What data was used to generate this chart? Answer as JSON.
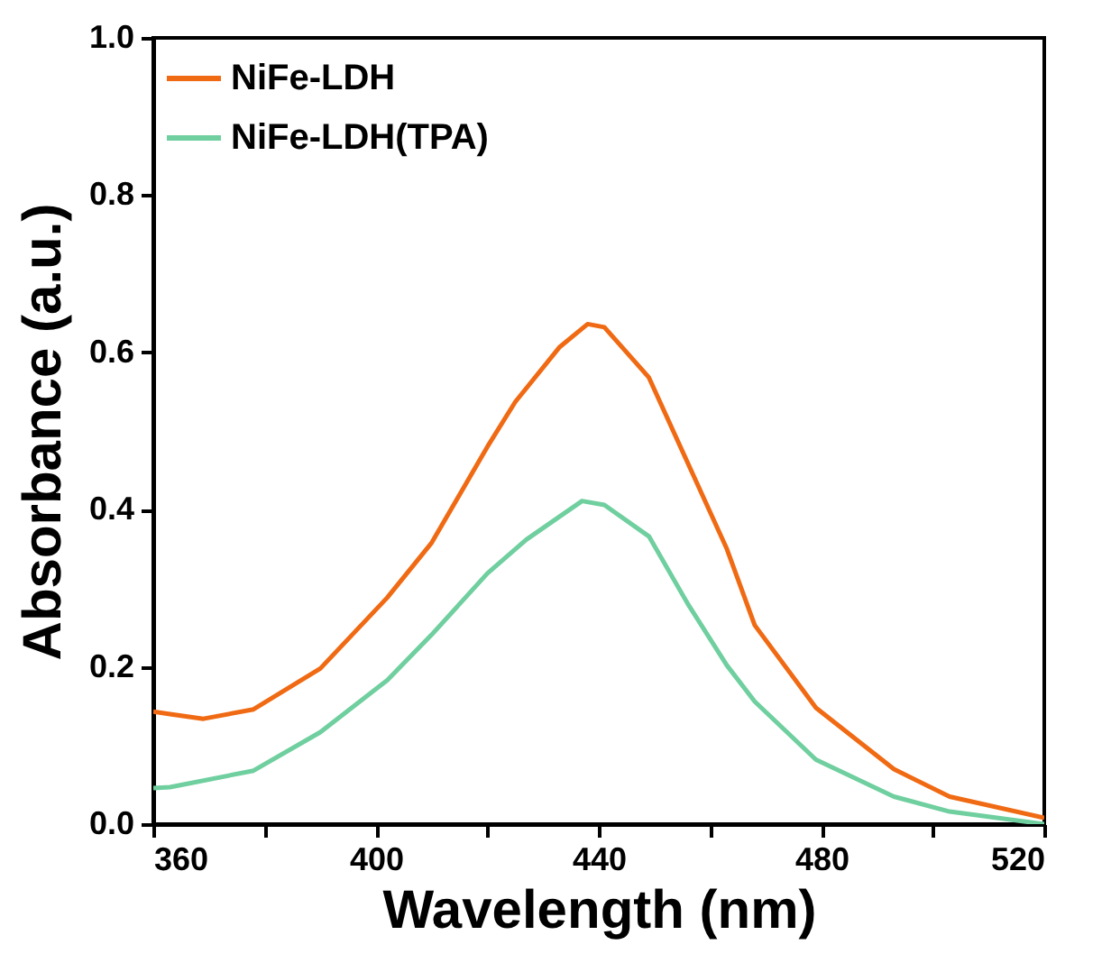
{
  "chart_data": {
    "type": "line",
    "xlabel": "Wavelength (nm)",
    "ylabel": "Absorbance (a.u.)",
    "xlim": [
      360,
      520
    ],
    "ylim": [
      0,
      1
    ],
    "xticks": [
      360,
      {
        "value": 380,
        "label": null
      },
      400,
      {
        "value": 420,
        "label": null
      },
      440,
      {
        "value": 460,
        "label": null
      },
      480,
      {
        "value": 500,
        "label": null
      },
      520
    ],
    "yticks": [
      {
        "value": 0,
        "label": "0.0"
      },
      {
        "value": 0.2,
        "label": "0.2"
      },
      {
        "value": 0.4,
        "label": "0.4"
      },
      {
        "value": 0.6,
        "label": "0.6"
      },
      {
        "value": 0.8,
        "label": "0.8"
      },
      {
        "value": 1,
        "label": "1.0"
      }
    ],
    "grid": false,
    "legend": "top left",
    "line_style": "solid",
    "marker": "none",
    "series": [
      {
        "name": "NiFe-LDH",
        "color": "#f06a14",
        "x": [
          360,
          363,
          369,
          378,
          390,
          402,
          410,
          420,
          425,
          433,
          438,
          441,
          449,
          456,
          463,
          468,
          479,
          493,
          503,
          520
        ],
        "values": [
          0.143,
          0.14,
          0.134,
          0.146,
          0.198,
          0.288,
          0.358,
          0.48,
          0.537,
          0.607,
          0.636,
          0.632,
          0.568,
          0.459,
          0.35,
          0.253,
          0.148,
          0.07,
          0.035,
          0.008
        ]
      },
      {
        "name": "NiFe-LDH(TPA)",
        "color": "#6fcf9f",
        "x": [
          360,
          363,
          378,
          390,
          402,
          410,
          420,
          427,
          437,
          441,
          449,
          456,
          463,
          468,
          479,
          493,
          503,
          520
        ],
        "values": [
          0.046,
          0.047,
          0.068,
          0.117,
          0.183,
          0.241,
          0.319,
          0.362,
          0.411,
          0.406,
          0.366,
          0.28,
          0.202,
          0.156,
          0.082,
          0.035,
          0.016,
          0.0
        ]
      }
    ]
  }
}
